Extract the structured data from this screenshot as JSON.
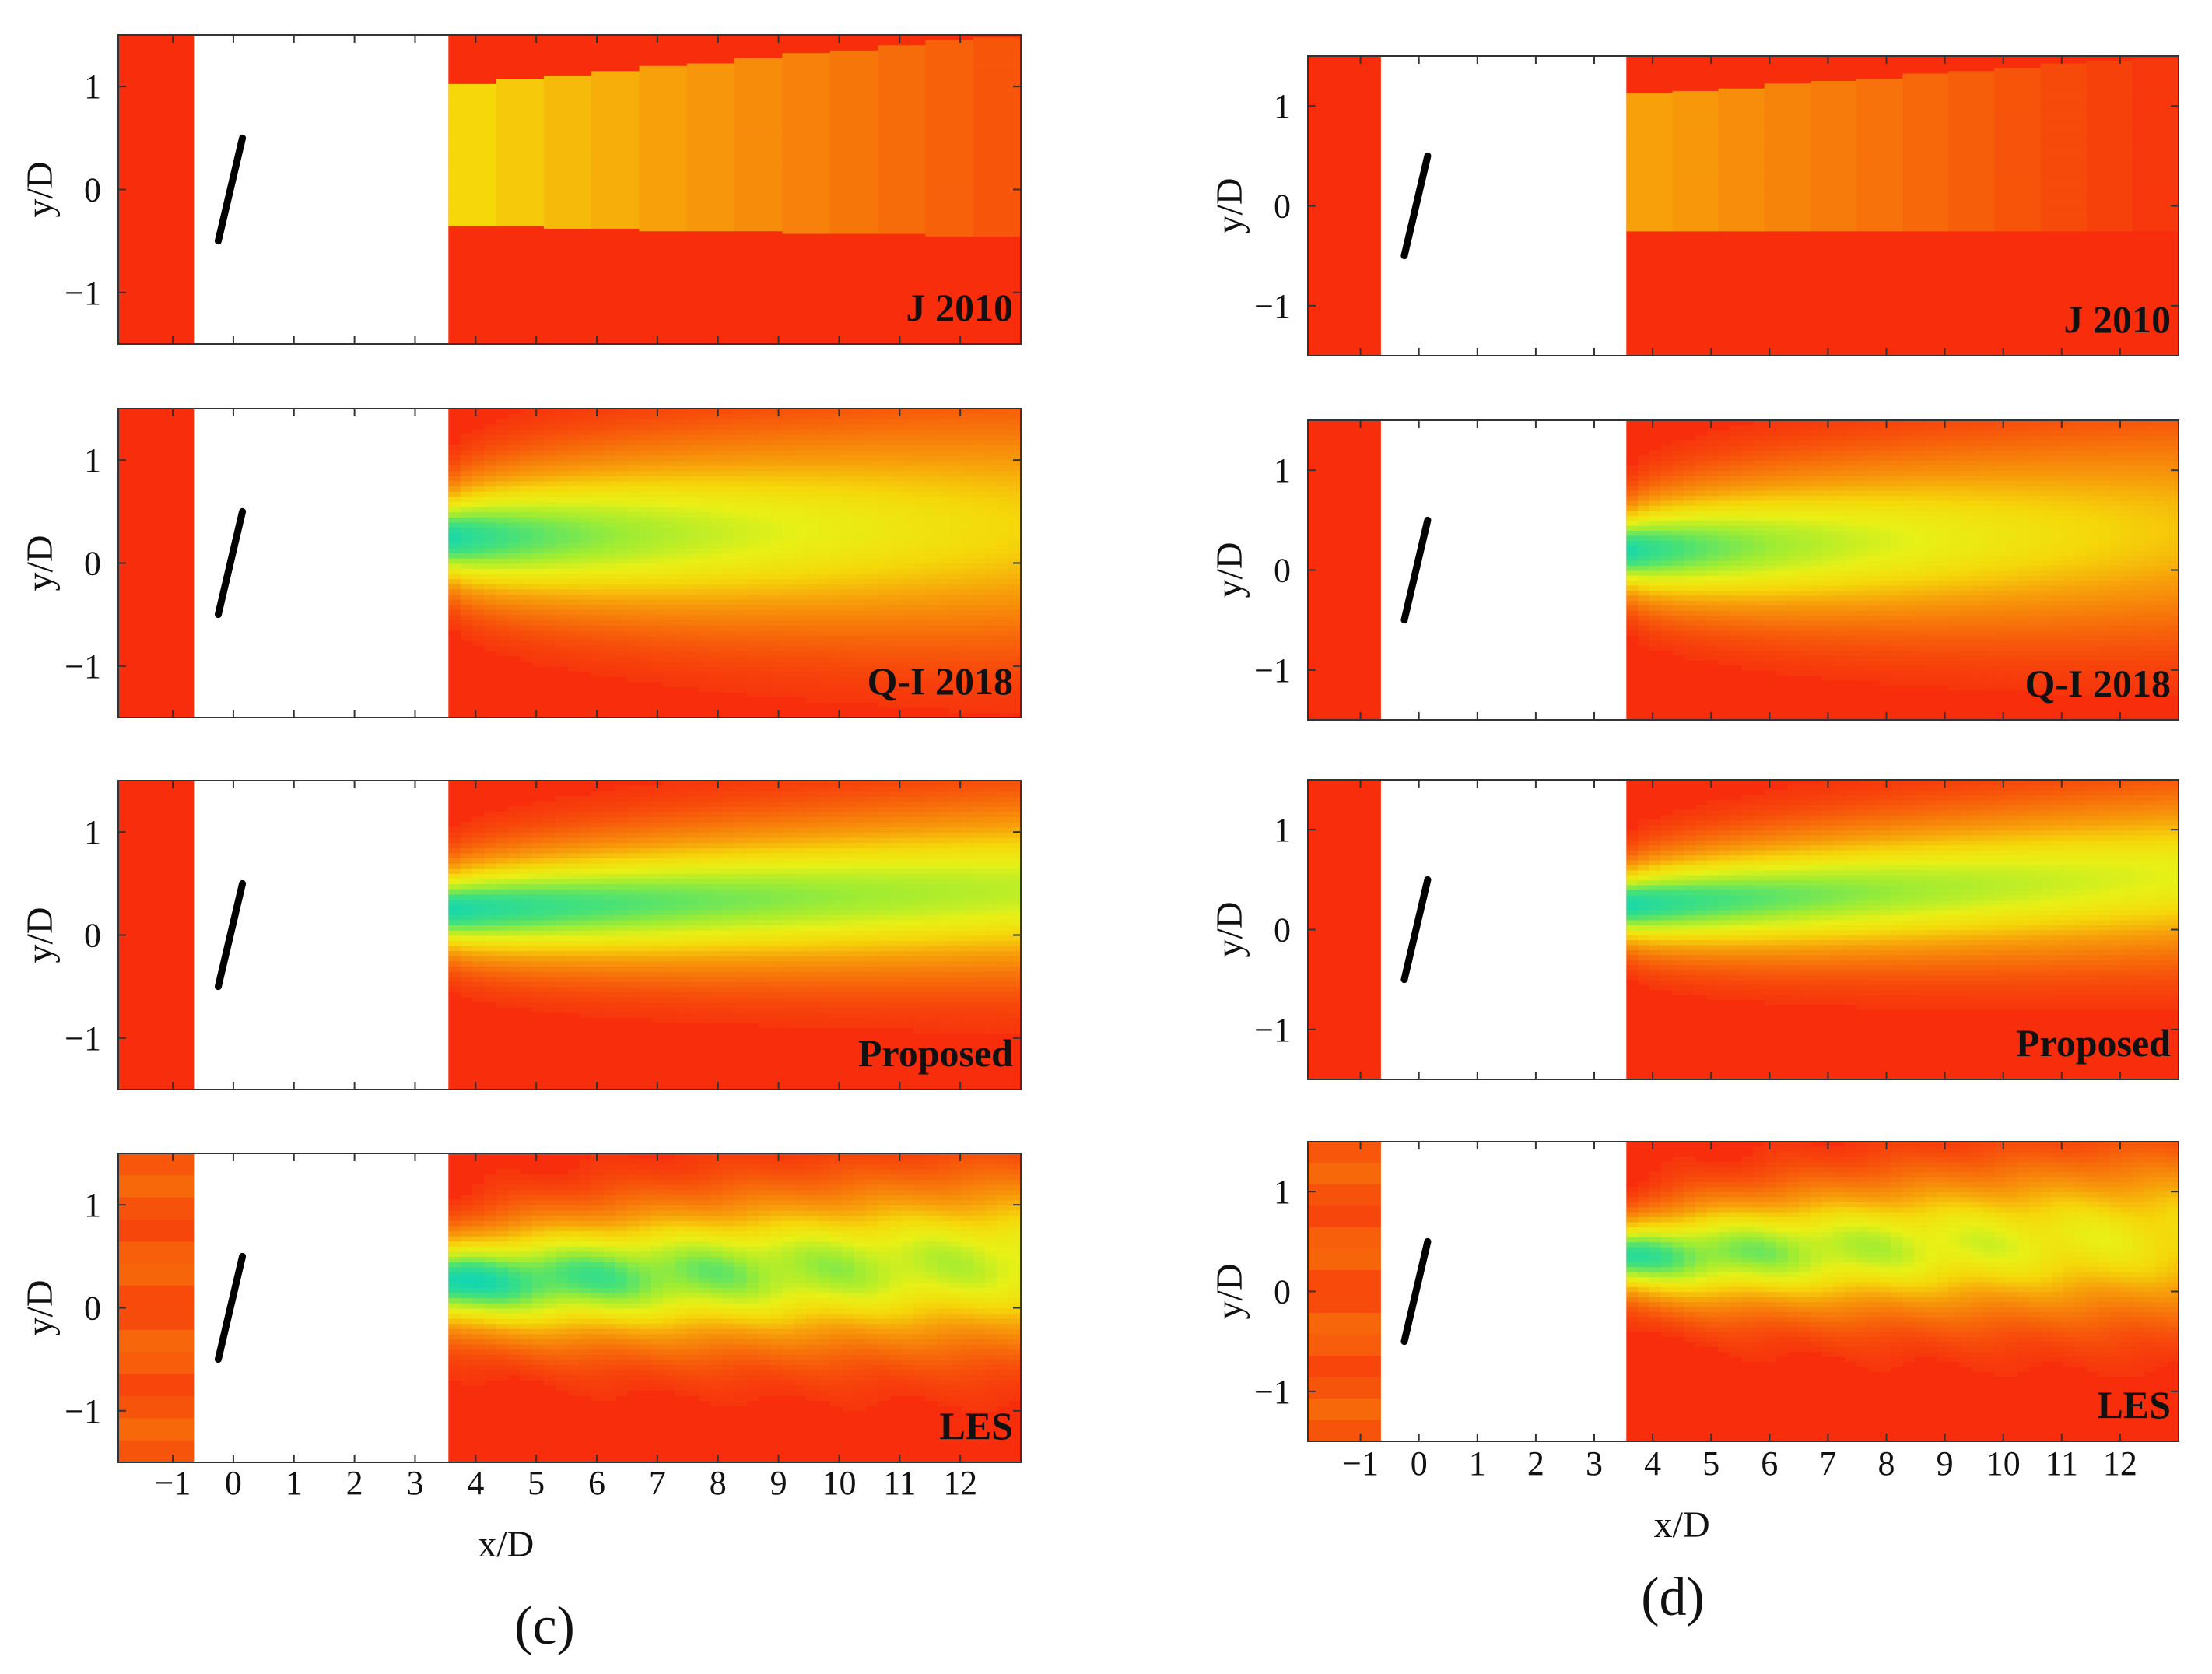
{
  "chart_data": {
    "type": "heatmap",
    "description_columns": [
      "(c)",
      "(d)"
    ],
    "colors": {
      "freestream": "#f72d0c",
      "deficit_max": "#18d6a4",
      "mid": "#e9ef12",
      "orange": "#f79d0a",
      "turbine": "#000000",
      "blank": "#ffffff"
    },
    "xlabel": "x/D",
    "ylabel": "y/D",
    "xlim": [
      -1.9,
      13.0
    ],
    "ylim": [
      -1.5,
      1.5
    ],
    "x_ticks": [
      -1,
      0,
      1,
      2,
      3,
      4,
      5,
      6,
      7,
      8,
      9,
      10,
      11,
      12
    ],
    "y_ticks": [
      -1,
      0,
      1
    ],
    "blank_region_x": [
      -0.65,
      3.55
    ],
    "turbine_segment": {
      "x": [
        -0.25,
        0.15
      ],
      "y": [
        -0.5,
        0.5
      ]
    },
    "columns": [
      {
        "caption": "(c)",
        "panels": [
          {
            "model": "J 2010",
            "kind": "tophat",
            "top_edge": [
              1.0,
              1.5
            ],
            "bottom_edge": [
              -0.35,
              -0.45
            ],
            "deficit_start": 0.45,
            "deficit_end": 0.9
          },
          {
            "model": "Q-I 2018",
            "kind": "gauss",
            "center": [
              0.25,
              0.35
            ],
            "width": [
              0.3,
              0.75
            ],
            "amplitude": [
              1.0,
              0.55
            ]
          },
          {
            "model": "Proposed",
            "kind": "gauss",
            "center": [
              0.25,
              0.45
            ],
            "width": [
              0.28,
              0.55
            ],
            "amplitude": [
              1.0,
              0.75
            ]
          },
          {
            "model": "LES",
            "kind": "gauss",
            "center": [
              0.25,
              0.45
            ],
            "width": [
              0.3,
              0.55
            ],
            "amplitude": [
              1.0,
              0.72
            ],
            "noise": true
          }
        ]
      },
      {
        "caption": "(d)",
        "panels": [
          {
            "model": "J 2010",
            "kind": "tophat",
            "top_edge": [
              1.1,
              1.5
            ],
            "bottom_edge": [
              -0.25,
              -0.25
            ],
            "deficit_start": 0.6,
            "deficit_end": 1.0
          },
          {
            "model": "Q-I 2018",
            "kind": "gauss",
            "center": [
              0.2,
              0.4
            ],
            "width": [
              0.28,
              0.7
            ],
            "amplitude": [
              1.0,
              0.5
            ]
          },
          {
            "model": "Proposed",
            "kind": "gauss",
            "center": [
              0.25,
              0.55
            ],
            "width": [
              0.26,
              0.55
            ],
            "amplitude": [
              1.0,
              0.68
            ]
          },
          {
            "model": "LES",
            "kind": "gauss",
            "center": [
              0.35,
              0.55
            ],
            "width": [
              0.25,
              0.55
            ],
            "amplitude": [
              0.95,
              0.6
            ],
            "noise": true
          }
        ]
      }
    ]
  }
}
